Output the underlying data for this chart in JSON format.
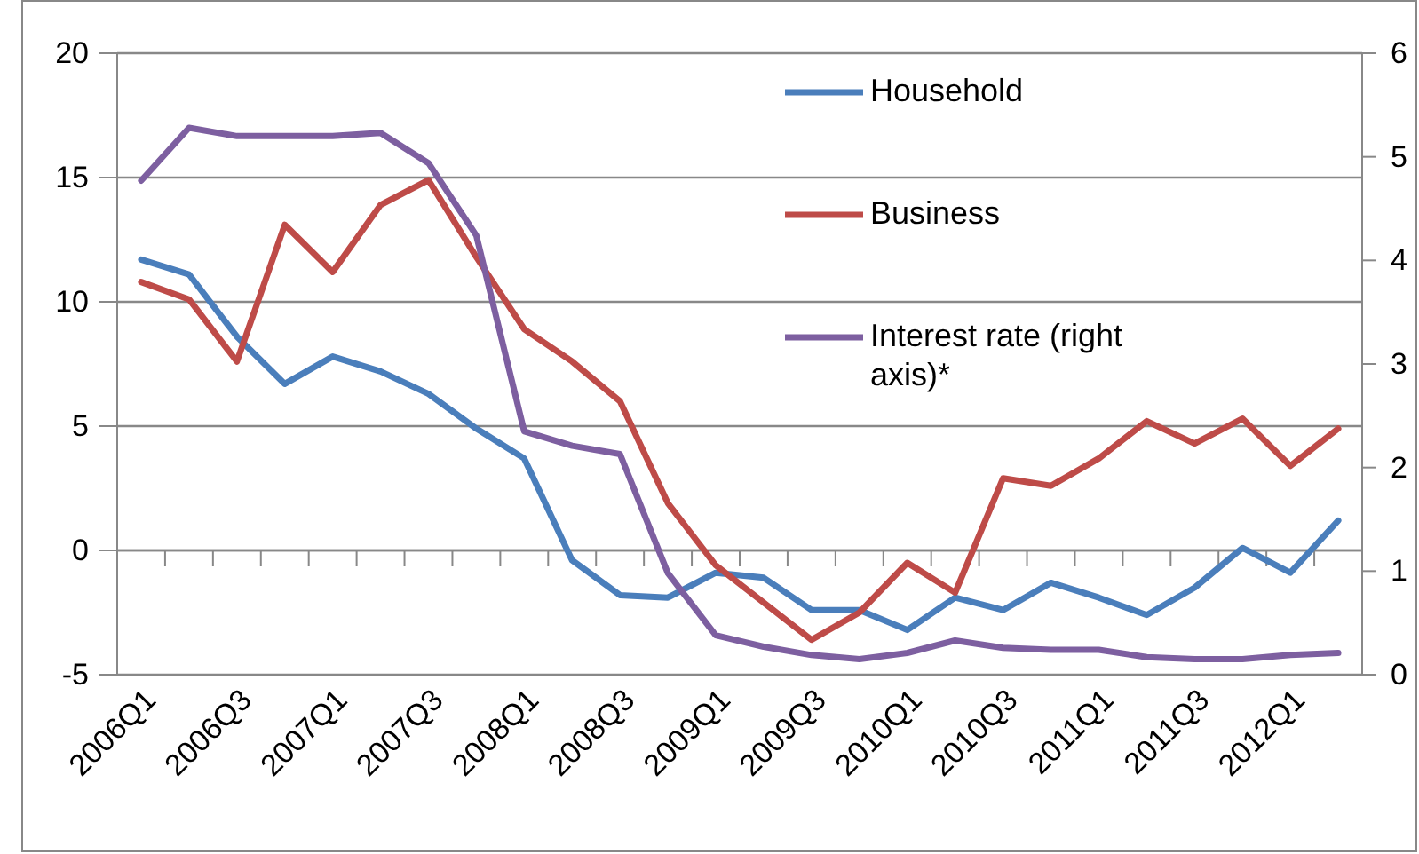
{
  "chart_data": {
    "type": "line",
    "categories": [
      "2006Q1",
      null,
      "2006Q3",
      null,
      "2007Q1",
      null,
      "2007Q3",
      null,
      "2008Q1",
      null,
      "2008Q3",
      null,
      "2009Q1",
      null,
      "2009Q3",
      null,
      "2010Q1",
      null,
      "2010Q3",
      null,
      "2011Q1",
      null,
      "2011Q3",
      null,
      "2012Q1",
      null
    ],
    "series": [
      {
        "name": "Household",
        "color": "#4a7ebb",
        "values": [
          11.7,
          11.1,
          8.6,
          6.7,
          7.8,
          7.2,
          6.3,
          4.9,
          3.7,
          -0.4,
          -1.8,
          -1.9,
          -0.9,
          -1.1,
          -2.4,
          -2.4,
          -3.2,
          -1.9,
          -2.4,
          -1.3,
          -1.9,
          -2.6,
          -1.5,
          0.1,
          -0.9,
          1.2
        ]
      },
      {
        "name": "Business",
        "color": "#be4b48",
        "values": [
          10.8,
          10.1,
          7.6,
          13.1,
          11.2,
          13.9,
          14.9,
          11.8,
          8.9,
          7.6,
          6.0,
          1.9,
          -0.6,
          -2.1,
          -3.6,
          -2.5,
          -0.5,
          -1.7,
          2.9,
          2.6,
          3.7,
          5.2,
          4.3,
          5.3,
          3.4,
          4.9
        ]
      },
      {
        "name": "Interest rate (right axis)*",
        "color": "#7d5fa0",
        "axis": "y2",
        "values": [
          4.77,
          5.28,
          5.2,
          5.2,
          5.2,
          5.23,
          4.94,
          4.24,
          2.35,
          2.21,
          2.13,
          0.98,
          0.38,
          0.27,
          0.19,
          0.15,
          0.21,
          0.33,
          0.26,
          0.24,
          0.24,
          0.17,
          0.15,
          0.15,
          0.19,
          0.21
        ]
      }
    ],
    "ylim": [
      -5,
      20
    ],
    "yticks": [
      -5,
      0,
      5,
      10,
      15,
      20
    ],
    "y2lim": [
      0,
      6
    ],
    "y2ticks": [
      0,
      1,
      2,
      3,
      4,
      5,
      6
    ],
    "grid": "y",
    "legend": "top right",
    "marker": "none",
    "line_style": "solid"
  }
}
